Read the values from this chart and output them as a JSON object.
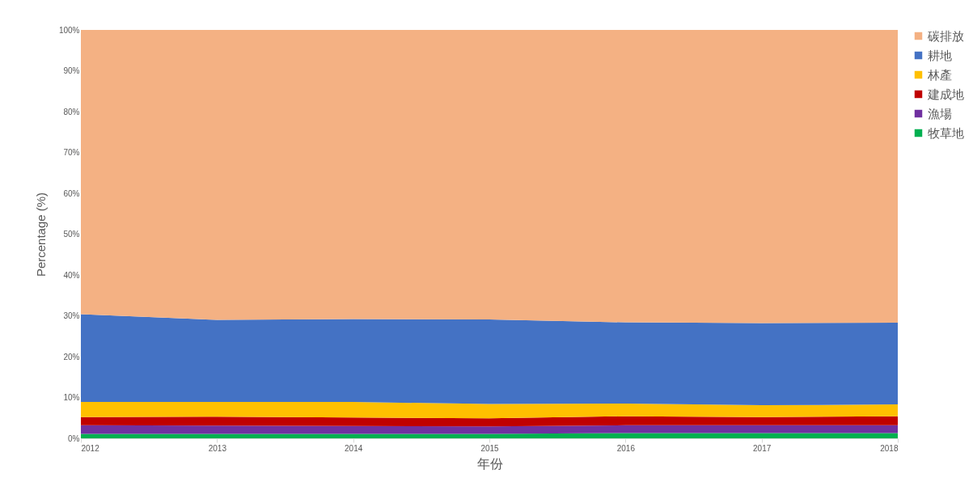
{
  "chart_data": {
    "type": "area",
    "stacked": true,
    "xlabel": "年份",
    "ylabel": "Percentage (%)",
    "categories": [
      "2012",
      "2013",
      "2014",
      "2015",
      "2016",
      "2017",
      "2018"
    ],
    "series": [
      {
        "name": "牧草地",
        "color": "#00b050",
        "values": [
          1.1,
          1.1,
          1.1,
          1.1,
          1.3,
          1.3,
          1.3
        ]
      },
      {
        "name": "漁場",
        "color": "#7030a0",
        "values": [
          2.1,
          2.0,
          1.9,
          1.8,
          1.9,
          1.9,
          1.9
        ]
      },
      {
        "name": "建成地",
        "color": "#c00000",
        "values": [
          2.0,
          2.2,
          2.1,
          2.0,
          2.2,
          2.0,
          2.2
        ]
      },
      {
        "name": "林產",
        "color": "#ffc000",
        "values": [
          3.7,
          3.6,
          3.8,
          3.5,
          3.1,
          2.9,
          2.9
        ]
      },
      {
        "name": "耕地",
        "color": "#4472c4",
        "values": [
          21.5,
          20.1,
          20.3,
          20.7,
          19.9,
          20.1,
          20.0
        ]
      },
      {
        "name": "碳排放",
        "color": "#f4b183",
        "values": [
          69.6,
          71.0,
          70.8,
          70.9,
          71.6,
          71.8,
          71.7
        ]
      }
    ],
    "ylim": [
      0,
      100
    ],
    "yticks": [
      {
        "value": 0,
        "label": "0%"
      },
      {
        "value": 10,
        "label": "10%"
      },
      {
        "value": 20,
        "label": "20%"
      },
      {
        "value": 30,
        "label": "30%"
      },
      {
        "value": 40,
        "label": "40%"
      },
      {
        "value": 50,
        "label": "50%"
      },
      {
        "value": 60,
        "label": "60%"
      },
      {
        "value": 70,
        "label": "70%"
      },
      {
        "value": 80,
        "label": "80%"
      },
      {
        "value": 90,
        "label": "90%"
      },
      {
        "value": 100,
        "label": "100%"
      }
    ],
    "grid": false,
    "legend": "right"
  }
}
